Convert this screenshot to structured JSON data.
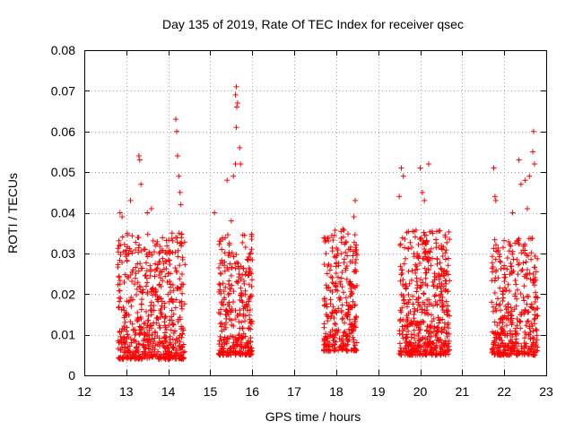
{
  "chart_data": {
    "type": "scatter",
    "title": "Day 135 of 2019, Rate Of TEC Index for receiver qsec",
    "xlabel": "GPS time / hours",
    "ylabel": "ROTI / TECUs",
    "xlim": [
      12,
      23
    ],
    "ylim": [
      0,
      0.08
    ],
    "x_ticks": [
      12,
      13,
      14,
      15,
      16,
      17,
      18,
      19,
      20,
      21,
      22,
      23
    ],
    "y_ticks": [
      0,
      0.01,
      0.02,
      0.03,
      0.04,
      0.05,
      0.06,
      0.07,
      0.08
    ],
    "y_tick_labels": [
      "0",
      "0.01",
      "0.02",
      "0.03",
      "0.04",
      "0.05",
      "0.06",
      "0.07",
      "0.08"
    ],
    "grid": true,
    "marker": "+",
    "color": "#ff0000",
    "clusters": [
      {
        "x_range": [
          12.8,
          14.4
        ],
        "y_range": [
          0.004,
          0.035
        ],
        "count": 600
      },
      {
        "x_range": [
          15.2,
          16.0
        ],
        "y_range": [
          0.005,
          0.035
        ],
        "count": 320
      },
      {
        "x_range": [
          17.7,
          18.5
        ],
        "y_range": [
          0.006,
          0.036
        ],
        "count": 300
      },
      {
        "x_range": [
          19.5,
          20.7
        ],
        "y_range": [
          0.005,
          0.036
        ],
        "count": 500
      },
      {
        "x_range": [
          21.7,
          22.8
        ],
        "y_range": [
          0.005,
          0.034
        ],
        "count": 400
      }
    ],
    "outliers": [
      {
        "x": 12.85,
        "y": 0.04
      },
      {
        "x": 12.9,
        "y": 0.039
      },
      {
        "x": 13.1,
        "y": 0.043
      },
      {
        "x": 13.3,
        "y": 0.054
      },
      {
        "x": 13.32,
        "y": 0.053
      },
      {
        "x": 13.35,
        "y": 0.047
      },
      {
        "x": 13.5,
        "y": 0.04
      },
      {
        "x": 13.6,
        "y": 0.041
      },
      {
        "x": 14.18,
        "y": 0.063
      },
      {
        "x": 14.2,
        "y": 0.06
      },
      {
        "x": 14.22,
        "y": 0.054
      },
      {
        "x": 14.25,
        "y": 0.049
      },
      {
        "x": 14.28,
        "y": 0.045
      },
      {
        "x": 14.3,
        "y": 0.042
      },
      {
        "x": 15.4,
        "y": 0.048
      },
      {
        "x": 15.55,
        "y": 0.049
      },
      {
        "x": 15.6,
        "y": 0.052
      },
      {
        "x": 15.62,
        "y": 0.061
      },
      {
        "x": 15.63,
        "y": 0.066
      },
      {
        "x": 15.65,
        "y": 0.067
      },
      {
        "x": 15.62,
        "y": 0.071
      },
      {
        "x": 15.6,
        "y": 0.069
      },
      {
        "x": 15.7,
        "y": 0.056
      },
      {
        "x": 15.72,
        "y": 0.052
      },
      {
        "x": 15.1,
        "y": 0.04
      },
      {
        "x": 15.5,
        "y": 0.038
      },
      {
        "x": 18.45,
        "y": 0.043
      },
      {
        "x": 18.42,
        "y": 0.039
      },
      {
        "x": 19.55,
        "y": 0.051
      },
      {
        "x": 19.6,
        "y": 0.049
      },
      {
        "x": 19.5,
        "y": 0.044
      },
      {
        "x": 20.0,
        "y": 0.051
      },
      {
        "x": 20.05,
        "y": 0.045
      },
      {
        "x": 20.2,
        "y": 0.052
      },
      {
        "x": 20.1,
        "y": 0.043
      },
      {
        "x": 20.6,
        "y": 0.034
      },
      {
        "x": 21.75,
        "y": 0.051
      },
      {
        "x": 21.78,
        "y": 0.044
      },
      {
        "x": 21.8,
        "y": 0.043
      },
      {
        "x": 22.2,
        "y": 0.04
      },
      {
        "x": 22.35,
        "y": 0.053
      },
      {
        "x": 22.4,
        "y": 0.047
      },
      {
        "x": 22.5,
        "y": 0.048
      },
      {
        "x": 22.6,
        "y": 0.049
      },
      {
        "x": 22.7,
        "y": 0.06
      },
      {
        "x": 22.68,
        "y": 0.055
      },
      {
        "x": 22.72,
        "y": 0.052
      },
      {
        "x": 22.55,
        "y": 0.041
      }
    ]
  }
}
